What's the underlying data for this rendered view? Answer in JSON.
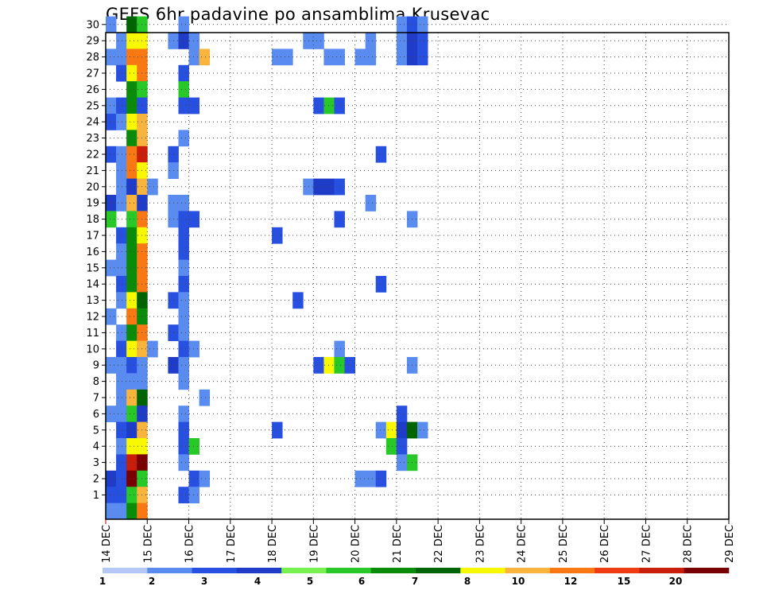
{
  "chart_data": {
    "type": "heatmap",
    "title": "GEFS 6hr padavine po ansamblima Krusevac",
    "xlabel": "",
    "ylabel": "",
    "y_ticks": [
      1,
      2,
      3,
      4,
      5,
      6,
      7,
      8,
      9,
      10,
      11,
      12,
      13,
      14,
      15,
      16,
      17,
      18,
      19,
      20,
      21,
      22,
      23,
      24,
      25,
      26,
      27,
      28,
      29,
      30
    ],
    "x_ticks": [
      "14 DEC",
      "15 DEC",
      "16 DEC",
      "17 DEC",
      "18 DEC",
      "19 DEC",
      "20 DEC",
      "21 DEC",
      "22 DEC",
      "23 DEC",
      "24 DEC",
      "25 DEC",
      "26 DEC",
      "27 DEC",
      "28 DEC",
      "29 DEC"
    ],
    "x_range_days": [
      14,
      29
    ],
    "time_step_hours": 6,
    "grid": "dotted",
    "colorbar": {
      "placement": "bottom",
      "labels": [
        "1",
        "2",
        "3",
        "4",
        "5",
        "6",
        "7",
        "8",
        "10",
        "12",
        "15",
        "20"
      ],
      "colors": [
        "#b4c8f8",
        "#5a8cf0",
        "#2850e0",
        "#1e3cc8",
        "#78f050",
        "#28c828",
        "#0a8c0a",
        "#006400",
        "#f8f800",
        "#f8b43c",
        "#f87814",
        "#f03c14",
        "#c81e0a",
        "#780000"
      ]
    },
    "cells": [
      {
        "m": 30,
        "s": [
          [
            0,
            1
          ],
          [
            2,
            7
          ],
          [
            3,
            5
          ],
          [
            7,
            1
          ],
          [
            28,
            1
          ],
          [
            29,
            2
          ],
          [
            30,
            1
          ]
        ]
      },
      {
        "m": 29,
        "s": [
          [
            1,
            1
          ],
          [
            2,
            8
          ],
          [
            3,
            8
          ],
          [
            6,
            1
          ],
          [
            7,
            3
          ],
          [
            8,
            1
          ],
          [
            19,
            1
          ],
          [
            20,
            1
          ],
          [
            25,
            1
          ],
          [
            28,
            1
          ],
          [
            29,
            3
          ],
          [
            30,
            2
          ]
        ]
      },
      {
        "m": 28,
        "s": [
          [
            0,
            1
          ],
          [
            1,
            1
          ],
          [
            2,
            10
          ],
          [
            3,
            10
          ],
          [
            8,
            1
          ],
          [
            9,
            9
          ],
          [
            16,
            1
          ],
          [
            17,
            1
          ],
          [
            21,
            1
          ],
          [
            22,
            1
          ],
          [
            24,
            1
          ],
          [
            25,
            1
          ],
          [
            28,
            1
          ],
          [
            29,
            3
          ],
          [
            30,
            2
          ]
        ]
      },
      {
        "m": 27,
        "s": [
          [
            1,
            2
          ],
          [
            2,
            8
          ],
          [
            3,
            10
          ],
          [
            7,
            2
          ]
        ]
      },
      {
        "m": 26,
        "s": [
          [
            2,
            6
          ],
          [
            3,
            5
          ],
          [
            7,
            5
          ]
        ]
      },
      {
        "m": 25,
        "s": [
          [
            0,
            1
          ],
          [
            1,
            2
          ],
          [
            2,
            6
          ],
          [
            3,
            2
          ],
          [
            7,
            2
          ],
          [
            8,
            2
          ],
          [
            20,
            2
          ],
          [
            21,
            5
          ],
          [
            22,
            2
          ]
        ]
      },
      {
        "m": 24,
        "s": [
          [
            0,
            2
          ],
          [
            1,
            1
          ],
          [
            2,
            8
          ],
          [
            3,
            9
          ]
        ]
      },
      {
        "m": 23,
        "s": [
          [
            2,
            6
          ],
          [
            3,
            9
          ],
          [
            7,
            1
          ]
        ]
      },
      {
        "m": 22,
        "s": [
          [
            0,
            2
          ],
          [
            1,
            1
          ],
          [
            2,
            10
          ],
          [
            3,
            12
          ],
          [
            6,
            2
          ],
          [
            26,
            2
          ]
        ]
      },
      {
        "m": 21,
        "s": [
          [
            1,
            1
          ],
          [
            2,
            10
          ],
          [
            3,
            8
          ],
          [
            6,
            1
          ]
        ]
      },
      {
        "m": 20,
        "s": [
          [
            1,
            1
          ],
          [
            2,
            3
          ],
          [
            3,
            9
          ],
          [
            4,
            1
          ],
          [
            19,
            1
          ],
          [
            20,
            3
          ],
          [
            21,
            3
          ],
          [
            22,
            2
          ]
        ]
      },
      {
        "m": 19,
        "s": [
          [
            0,
            3
          ],
          [
            1,
            1
          ],
          [
            2,
            9
          ],
          [
            3,
            3
          ],
          [
            6,
            1
          ],
          [
            7,
            1
          ],
          [
            25,
            1
          ]
        ]
      },
      {
        "m": 18,
        "s": [
          [
            0,
            5
          ],
          [
            2,
            5
          ],
          [
            3,
            10
          ],
          [
            6,
            1
          ],
          [
            7,
            2
          ],
          [
            8,
            2
          ],
          [
            22,
            2
          ],
          [
            29,
            1
          ]
        ]
      },
      {
        "m": 17,
        "s": [
          [
            1,
            2
          ],
          [
            2,
            6
          ],
          [
            3,
            8
          ],
          [
            7,
            2
          ],
          [
            16,
            2
          ]
        ]
      },
      {
        "m": 16,
        "s": [
          [
            1,
            1
          ],
          [
            2,
            6
          ],
          [
            3,
            10
          ],
          [
            7,
            2
          ]
        ]
      },
      {
        "m": 15,
        "s": [
          [
            0,
            1
          ],
          [
            1,
            1
          ],
          [
            2,
            6
          ],
          [
            3,
            10
          ],
          [
            7,
            1
          ]
        ]
      },
      {
        "m": 14,
        "s": [
          [
            1,
            2
          ],
          [
            2,
            6
          ],
          [
            3,
            10
          ],
          [
            7,
            2
          ],
          [
            26,
            2
          ]
        ]
      },
      {
        "m": 13,
        "s": [
          [
            1,
            1
          ],
          [
            2,
            8
          ],
          [
            3,
            7
          ],
          [
            6,
            2
          ],
          [
            7,
            1
          ],
          [
            18,
            2
          ]
        ]
      },
      {
        "m": 12,
        "s": [
          [
            0,
            1
          ],
          [
            2,
            10
          ],
          [
            3,
            6
          ],
          [
            7,
            1
          ]
        ]
      },
      {
        "m": 11,
        "s": [
          [
            1,
            1
          ],
          [
            2,
            6
          ],
          [
            3,
            10
          ],
          [
            6,
            2
          ],
          [
            7,
            1
          ]
        ]
      },
      {
        "m": 10,
        "s": [
          [
            1,
            2
          ],
          [
            2,
            8
          ],
          [
            3,
            9
          ],
          [
            4,
            1
          ],
          [
            7,
            2
          ],
          [
            8,
            1
          ],
          [
            22,
            1
          ]
        ]
      },
      {
        "m": 9,
        "s": [
          [
            0,
            1
          ],
          [
            1,
            1
          ],
          [
            2,
            2
          ],
          [
            3,
            1
          ],
          [
            6,
            3
          ],
          [
            7,
            1
          ],
          [
            20,
            2
          ],
          [
            21,
            8
          ],
          [
            22,
            5
          ],
          [
            23,
            2
          ],
          [
            29,
            1
          ]
        ]
      },
      {
        "m": 8,
        "s": [
          [
            1,
            1
          ],
          [
            2,
            1
          ],
          [
            3,
            1
          ],
          [
            7,
            1
          ]
        ]
      },
      {
        "m": 7,
        "s": [
          [
            1,
            1
          ],
          [
            2,
            9
          ],
          [
            3,
            7
          ],
          [
            9,
            1
          ]
        ]
      },
      {
        "m": 6,
        "s": [
          [
            0,
            1
          ],
          [
            1,
            1
          ],
          [
            2,
            5
          ],
          [
            3,
            3
          ],
          [
            7,
            1
          ],
          [
            28,
            2
          ]
        ]
      },
      {
        "m": 5,
        "s": [
          [
            1,
            2
          ],
          [
            2,
            3
          ],
          [
            3,
            9
          ],
          [
            7,
            2
          ],
          [
            16,
            2
          ],
          [
            26,
            1
          ],
          [
            27,
            8
          ],
          [
            28,
            3
          ],
          [
            29,
            7
          ],
          [
            30,
            1
          ]
        ]
      },
      {
        "m": 4,
        "s": [
          [
            1,
            1
          ],
          [
            2,
            8
          ],
          [
            3,
            8
          ],
          [
            7,
            2
          ],
          [
            8,
            5
          ],
          [
            27,
            5
          ],
          [
            28,
            2
          ]
        ]
      },
      {
        "m": 3,
        "s": [
          [
            1,
            2
          ],
          [
            2,
            12
          ],
          [
            3,
            13
          ],
          [
            7,
            1
          ],
          [
            28,
            1
          ],
          [
            29,
            5
          ]
        ]
      },
      {
        "m": 2,
        "s": [
          [
            0,
            3
          ],
          [
            1,
            2
          ],
          [
            2,
            13
          ],
          [
            3,
            5
          ],
          [
            8,
            2
          ],
          [
            9,
            1
          ],
          [
            24,
            1
          ],
          [
            25,
            1
          ],
          [
            26,
            2
          ]
        ]
      },
      {
        "m": 1,
        "s": [
          [
            0,
            2
          ],
          [
            1,
            2
          ],
          [
            2,
            5
          ],
          [
            3,
            9
          ],
          [
            7,
            2
          ],
          [
            8,
            1
          ]
        ]
      },
      {
        "m": 0,
        "s": [
          [
            0,
            1
          ],
          [
            1,
            1
          ],
          [
            2,
            6
          ],
          [
            3,
            10
          ]
        ]
      }
    ]
  }
}
